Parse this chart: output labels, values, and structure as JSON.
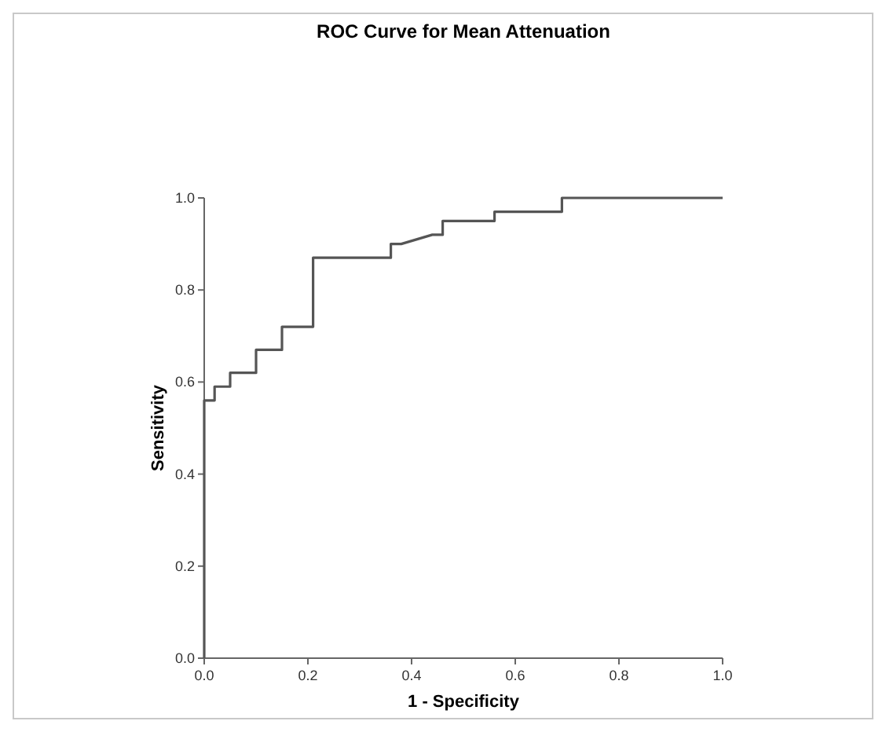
{
  "chart_data": {
    "type": "line",
    "title": "ROC Curve for Mean Attenuation",
    "xlabel": "1 - Specificity",
    "ylabel": "Sensitivity",
    "xlim": [
      0,
      1
    ],
    "ylim": [
      0,
      1
    ],
    "xticks": [
      {
        "value": 0,
        "label": "0.0"
      },
      {
        "value": 0.2,
        "label": "0.2"
      },
      {
        "value": 0.4,
        "label": "0.4"
      },
      {
        "value": 0.6,
        "label": "0.6"
      },
      {
        "value": 0.8,
        "label": "0.8"
      },
      {
        "value": 1,
        "label": "1.0"
      }
    ],
    "yticks": [
      {
        "value": 0,
        "label": "0.0"
      },
      {
        "value": 0.2,
        "label": "0.2"
      },
      {
        "value": 0.4,
        "label": "0.4"
      },
      {
        "value": 0.6,
        "label": "0.6"
      },
      {
        "value": 0.8,
        "label": "0.8"
      },
      {
        "value": 1,
        "label": "1.0"
      }
    ],
    "grid": false,
    "marker": "none",
    "line_style": "solid",
    "series": [
      {
        "color": "#555555",
        "x": [
          0,
          0,
          0.02,
          0.02,
          0.05,
          0.05,
          0.1,
          0.1,
          0.15,
          0.15,
          0.21,
          0.21,
          0.36,
          0.36,
          0.38,
          0.44,
          0.46,
          0.46,
          0.56,
          0.56,
          0.69,
          0.69,
          1
        ],
        "values": [
          0,
          0.56,
          0.56,
          0.59,
          0.59,
          0.62,
          0.62,
          0.67,
          0.67,
          0.72,
          0.72,
          0.87,
          0.87,
          0.9,
          0.9,
          0.92,
          0.92,
          0.95,
          0.95,
          0.97,
          0.97,
          1,
          1
        ]
      }
    ]
  }
}
